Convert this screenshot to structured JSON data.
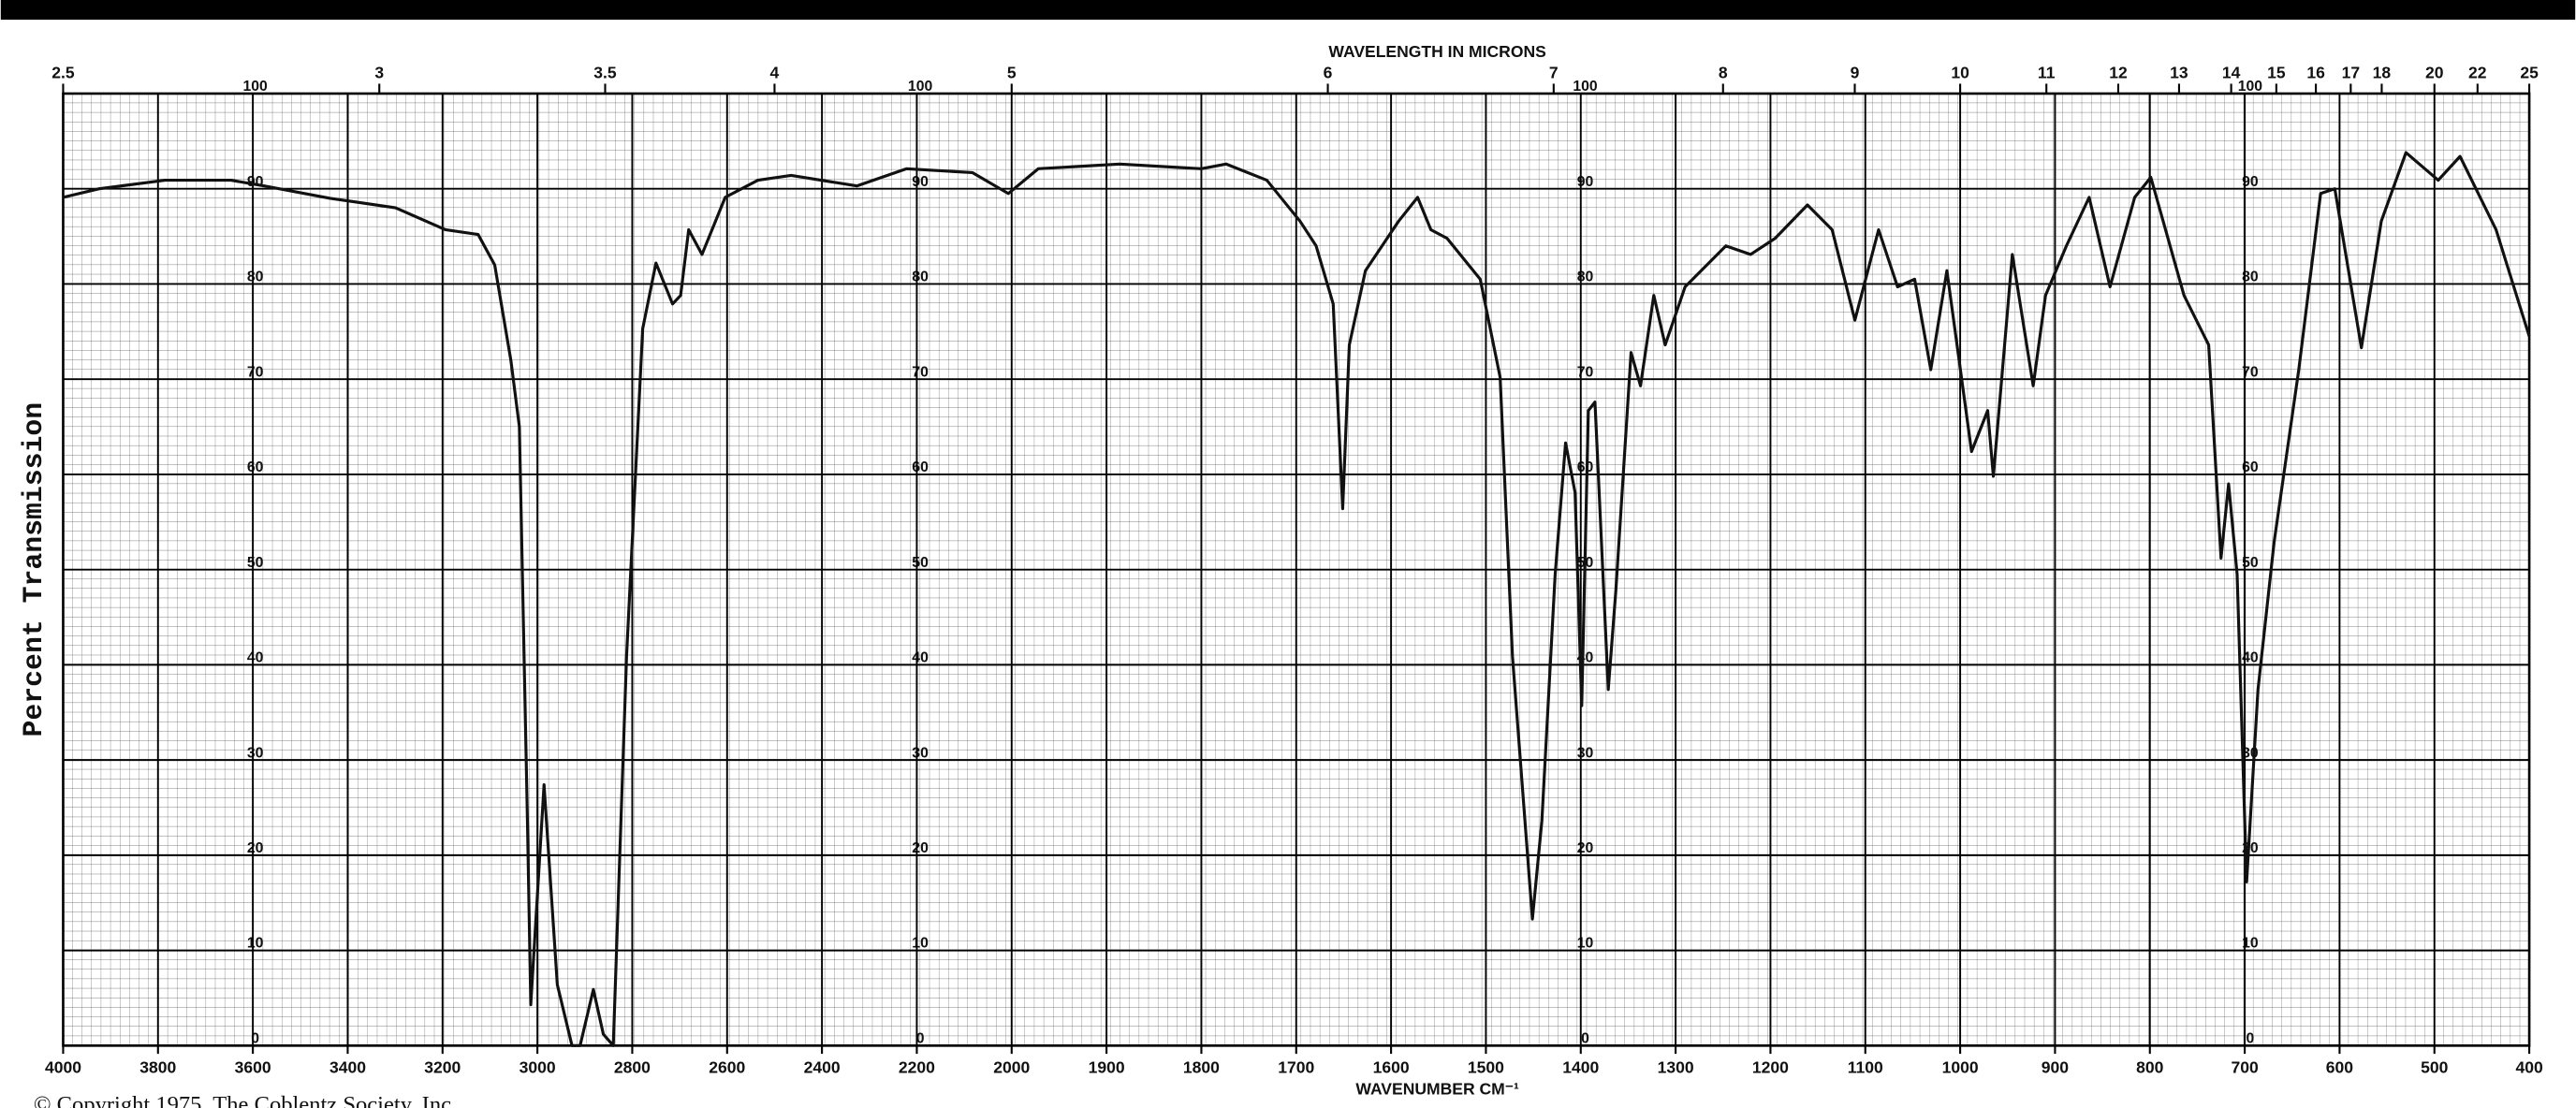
{
  "chart_data": {
    "type": "line",
    "x2_label": "WAVELENGTH IN MICRONS",
    "xlabel": "WAVENUMBER CM⁻¹",
    "ylabel": "Percent Transmission",
    "copyright": "© Copyright 1975, The Coblentz Society, Inc.",
    "color": "#111111",
    "grid": true,
    "xlim": [
      4000,
      400
    ],
    "x_scale_break": 2000,
    "ylim": [
      0,
      100
    ],
    "xticks": [
      4000,
      3800,
      3600,
      3400,
      3200,
      3000,
      2800,
      2600,
      2400,
      2200,
      2000,
      1900,
      1800,
      1700,
      1600,
      1500,
      1400,
      1300,
      1200,
      1100,
      1000,
      900,
      800,
      700,
      600,
      500,
      400
    ],
    "yticks": [
      0,
      10,
      20,
      30,
      40,
      50,
      60,
      70,
      80,
      90,
      100
    ],
    "x2ticks": [
      2.5,
      3,
      3.5,
      4,
      5,
      6,
      7,
      8,
      9,
      10,
      11,
      12,
      13,
      14,
      15,
      16,
      17,
      18,
      20,
      22,
      25
    ],
    "x": [
      4000,
      3924,
      3785,
      3646,
      3576,
      3437,
      3299,
      3194,
      3125,
      3090,
      3056,
      3038,
      3021,
      3014,
      2986,
      2958,
      2927,
      2910,
      2882,
      2861,
      2840,
      2812,
      2778,
      2750,
      2715,
      2698,
      2681,
      2653,
      2604,
      2535,
      2465,
      2326,
      2222,
      2083,
      2007,
      1972,
      1886,
      1800,
      1774,
      1731,
      1696,
      1679,
      1661,
      1651,
      1644,
      1627,
      1592,
      1572,
      1558,
      1541,
      1506,
      1485,
      1472,
      1451,
      1441,
      1427,
      1416,
      1406,
      1399,
      1392,
      1385,
      1371,
      1363,
      1347,
      1337,
      1323,
      1311,
      1290,
      1247,
      1221,
      1195,
      1161,
      1135,
      1111,
      1086,
      1066,
      1048,
      1031,
      1014,
      988,
      971,
      965,
      945,
      923,
      910,
      888,
      864,
      842,
      816,
      799,
      764,
      738,
      725,
      717,
      708,
      698,
      686,
      669,
      643,
      620,
      605,
      577,
      556,
      530,
      496,
      473,
      435,
      400
    ],
    "values": [
      89.1,
      90,
      90.9,
      90.9,
      90.3,
      89,
      88,
      85.7,
      85.2,
      82,
      72,
      65,
      23.6,
      4.3,
      27.4,
      6.4,
      0,
      0,
      5.9,
      1.2,
      0,
      40.9,
      75.3,
      82.2,
      77.9,
      78.8,
      85.7,
      83.1,
      89.1,
      90.9,
      91.4,
      90.3,
      92.1,
      91.7,
      89.5,
      92.1,
      92.6,
      92.1,
      92.6,
      90.9,
      86.6,
      84,
      77.9,
      56.4,
      73.6,
      81.4,
      86.6,
      89.1,
      85.7,
      84.8,
      80.5,
      70.2,
      40.9,
      13.3,
      23.6,
      49.5,
      63.3,
      58.1,
      35.7,
      66.7,
      67.6,
      37.4,
      47.8,
      72.8,
      69.3,
      78.8,
      73.6,
      79.7,
      84,
      83.1,
      84.8,
      88.3,
      85.7,
      76.2,
      85.7,
      79.7,
      80.5,
      71,
      81.4,
      62.4,
      66.7,
      59.8,
      83.1,
      69.3,
      78.8,
      84,
      89.1,
      79.7,
      89.1,
      91.2,
      78.8,
      73.6,
      51.2,
      59,
      49.5,
      17.2,
      37.4,
      52.9,
      71,
      89.5,
      90,
      73.3,
      86.6,
      93.8,
      90.9,
      93.4,
      85.7,
      74.5
    ]
  }
}
